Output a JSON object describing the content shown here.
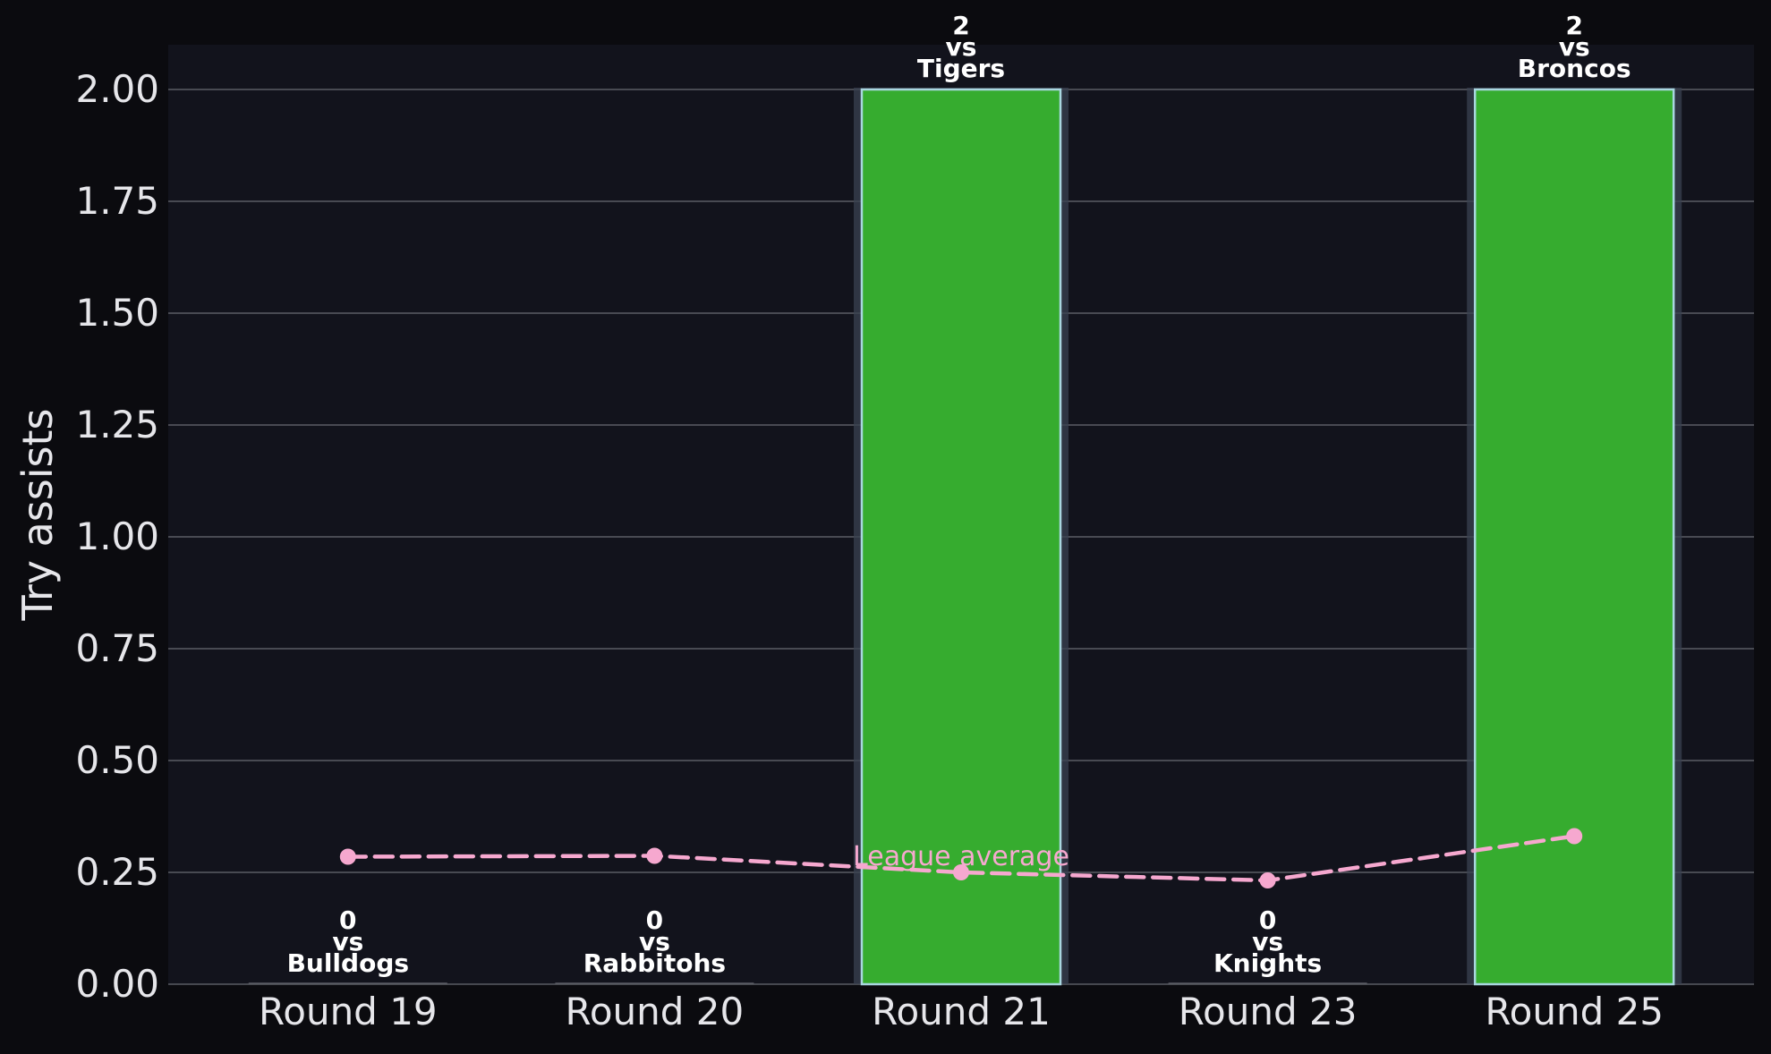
{
  "colors": {
    "page_background": "#0b0b0f",
    "plot_background": "#12131c",
    "bar_fill": "#36ac2f",
    "bar_edge": "#a9d6e0",
    "bar_halo": "#3a4150",
    "gridline": "#5a5c64",
    "axis_text": "#e6e6ea",
    "annotation_text": "#ffffff",
    "average_line": "#f6a8cf"
  },
  "chart_data": {
    "type": "bar",
    "xlabel": "",
    "ylabel": "Try assists",
    "ylim": [
      0,
      2.1
    ],
    "yticks": [
      "0.00",
      "0.25",
      "0.50",
      "0.75",
      "1.00",
      "1.25",
      "1.50",
      "1.75",
      "2.00"
    ],
    "grid": "horizontal",
    "categories": [
      "Round 19",
      "Round 20",
      "Round 21",
      "Round 23",
      "Round 25"
    ],
    "series": [
      {
        "values": [
          0,
          0,
          2,
          0,
          2
        ]
      },
      {
        "name": "League average",
        "type": "line",
        "style": "dashed",
        "values": [
          0.285,
          0.287,
          0.25,
          0.232,
          0.331
        ]
      }
    ],
    "bar_labels": [
      {
        "value": "0",
        "vs": "vs",
        "opponent": "Bulldogs"
      },
      {
        "value": "0",
        "vs": "vs",
        "opponent": "Rabbitohs"
      },
      {
        "value": "2",
        "vs": "vs",
        "opponent": "Tigers"
      },
      {
        "value": "0",
        "vs": "vs",
        "opponent": "Knights"
      },
      {
        "value": "2",
        "vs": "vs",
        "opponent": "Broncos"
      }
    ],
    "line_annotation": {
      "text": "League average",
      "at_category": "Round 21"
    }
  }
}
